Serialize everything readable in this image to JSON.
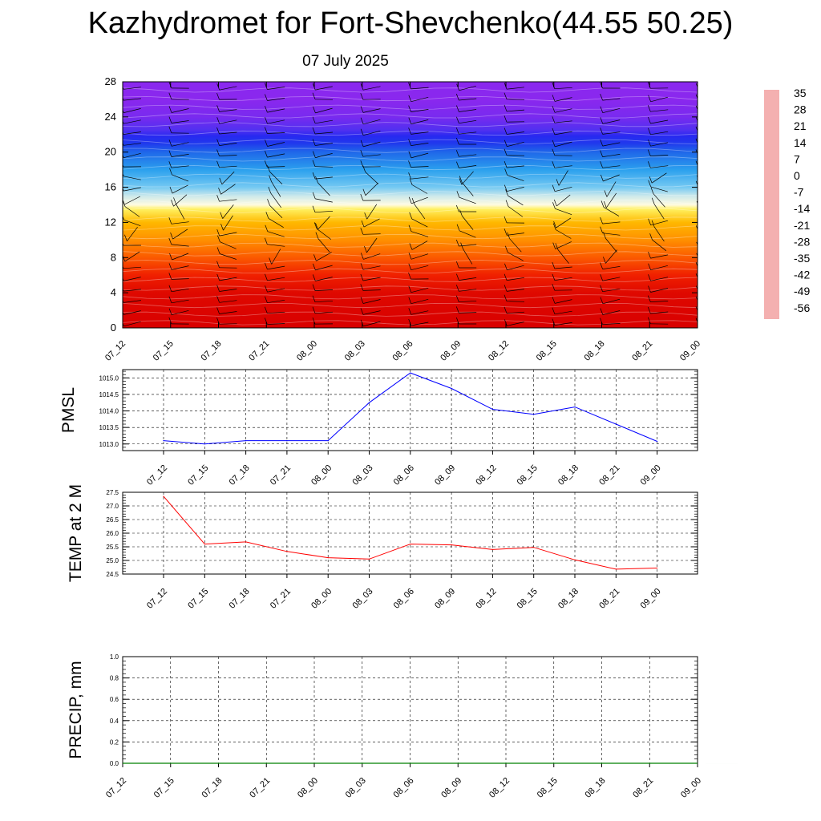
{
  "title": "Kazhydromet for Fort-Shevchenko(44.55 50.25)",
  "subtitle": "07 July 2025",
  "chart_data": [
    {
      "type": "heatmap",
      "panel": "vertical cross-section (temperature shading with wind barbs)",
      "x_ticks": [
        "07_12",
        "07_15",
        "07_18",
        "07_21",
        "08_00",
        "08_03",
        "08_06",
        "08_09",
        "08_12",
        "08_15",
        "08_18",
        "08_21",
        "09_00"
      ],
      "y_ticks": [
        0,
        4,
        8,
        12,
        16,
        20,
        24,
        28
      ],
      "ylim": [
        0,
        28
      ],
      "color_scale": {
        "labels": [
          35,
          28,
          21,
          14,
          7,
          0,
          -7,
          -14,
          -21,
          -28,
          -35,
          -42,
          -49,
          -56
        ],
        "stops": [
          {
            "v": 35,
            "c": "#f4b0b0"
          },
          {
            "v": 28,
            "c": "#e82020"
          },
          {
            "v": 21,
            "c": "#d80000"
          },
          {
            "v": 14,
            "c": "#f02000"
          },
          {
            "v": 7,
            "c": "#ff7000"
          },
          {
            "v": 0,
            "c": "#ffb800"
          },
          {
            "v": -7,
            "c": "#fff060"
          },
          {
            "v": -14,
            "c": "#fffbe0"
          },
          {
            "v": -21,
            "c": "#a8dcf4"
          },
          {
            "v": -28,
            "c": "#30b0f0"
          },
          {
            "v": -35,
            "c": "#1e78ea"
          },
          {
            "v": -42,
            "c": "#2050e8"
          },
          {
            "v": -49,
            "c": "#2028f0"
          },
          {
            "v": -56,
            "c": "#5030f0"
          },
          {
            "v": -63,
            "c": "#8a28ee"
          }
        ]
      },
      "temperature_profile": [
        [
          0,
          21
        ],
        [
          4,
          19
        ],
        [
          6,
          14
        ],
        [
          8,
          9
        ],
        [
          10,
          4
        ],
        [
          12,
          0
        ],
        [
          13.5,
          -7
        ],
        [
          14,
          -14
        ],
        [
          15,
          -18
        ],
        [
          16,
          -24
        ],
        [
          18,
          -30
        ],
        [
          20,
          -38
        ],
        [
          21,
          -46
        ],
        [
          21.8,
          -50
        ],
        [
          22.5,
          -56
        ],
        [
          24,
          -61
        ],
        [
          26,
          -63
        ],
        [
          28,
          -63
        ]
      ]
    },
    {
      "type": "line",
      "ylabel": "PMSL",
      "categories": [
        "07_12",
        "07_15",
        "07_18",
        "07_21",
        "08_00",
        "08_03",
        "08_06",
        "08_09",
        "08_12",
        "08_15",
        "08_18",
        "08_21",
        "09_00"
      ],
      "values": [
        1013.1,
        1013.0,
        1013.1,
        1013.1,
        1013.1,
        1014.25,
        1015.15,
        1014.68,
        1014.05,
        1013.9,
        1014.12,
        1013.6,
        1013.08
      ],
      "y_ticks": [
        1013.0,
        1013.5,
        1014.0,
        1014.5,
        1015.0
      ],
      "y_tick_labels": [
        "1013.0",
        "1013.5",
        "1014.0",
        "1014.5",
        "1015.0"
      ],
      "ylim": [
        1012.8,
        1015.25
      ],
      "color": "#0000ff",
      "grid": true
    },
    {
      "type": "line",
      "ylabel": "TEMP at 2 M",
      "categories": [
        "07_12",
        "07_15",
        "07_18",
        "07_21",
        "08_00",
        "08_03",
        "08_06",
        "08_09",
        "08_12",
        "08_15",
        "08_18",
        "08_21",
        "09_00"
      ],
      "values": [
        27.35,
        25.6,
        25.68,
        25.33,
        25.1,
        25.05,
        25.6,
        25.57,
        25.4,
        25.48,
        25.02,
        24.68,
        24.72
      ],
      "y_ticks": [
        24.5,
        25.0,
        25.5,
        26.0,
        26.5,
        27.0,
        27.5
      ],
      "y_tick_labels": [
        "24.5",
        "25.0",
        "25.5",
        "26.0",
        "26.5",
        "27.0",
        "27.5"
      ],
      "ylim": [
        24.5,
        27.5
      ],
      "color": "#ff0000",
      "grid": true
    },
    {
      "type": "bar",
      "ylabel": "PRECIP, mm",
      "categories": [
        "07_12",
        "07_15",
        "07_18",
        "07_21",
        "08_00",
        "08_03",
        "08_06",
        "08_09",
        "08_12",
        "08_15",
        "08_18",
        "08_21",
        "09_00"
      ],
      "values": [
        0,
        0,
        0,
        0,
        0,
        0,
        0,
        0,
        0,
        0,
        0,
        0,
        0
      ],
      "y_ticks": [
        0.0,
        0.2,
        0.4,
        0.6,
        0.8,
        1.0
      ],
      "y_tick_labels": [
        "0.0",
        "0.2",
        "0.4",
        "0.6",
        "0.8",
        "1.0"
      ],
      "ylim": [
        0,
        1.0
      ],
      "color": "#008000",
      "grid": true
    }
  ]
}
